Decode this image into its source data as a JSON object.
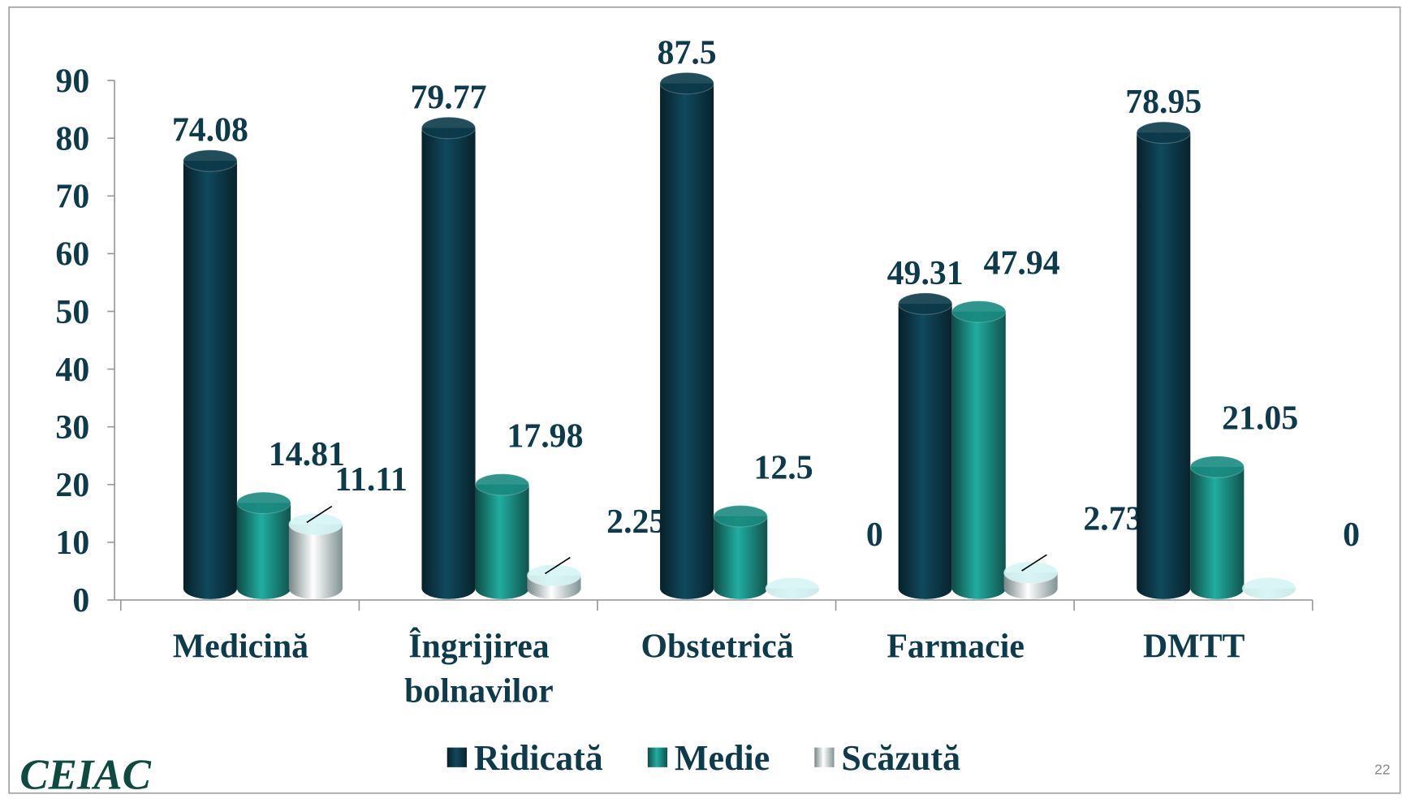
{
  "chart_data": {
    "type": "bar",
    "categories": [
      "Medicină",
      "Îngrijirea bolnavilor",
      "Obstetrică",
      "Farmacie",
      "DMTT"
    ],
    "series": [
      {
        "name": "Ridicată",
        "color": "#0d3a4a",
        "values": [
          74.08,
          79.77,
          87.5,
          49.31,
          78.95
        ]
      },
      {
        "name": "Medie",
        "color": "#1a8a80",
        "values": [
          14.81,
          17.98,
          12.5,
          47.94,
          21.05
        ]
      },
      {
        "name": "Scăzută",
        "color": "#d6f4f4",
        "values": [
          11.11,
          2.25,
          0,
          2.73,
          0
        ]
      }
    ],
    "ylim": [
      0,
      90
    ],
    "yticks": [
      0,
      10,
      20,
      30,
      40,
      50,
      60,
      70,
      80,
      90
    ],
    "grid": false,
    "legend": "bottom"
  },
  "logo": "CEIAC",
  "page_number": "22"
}
